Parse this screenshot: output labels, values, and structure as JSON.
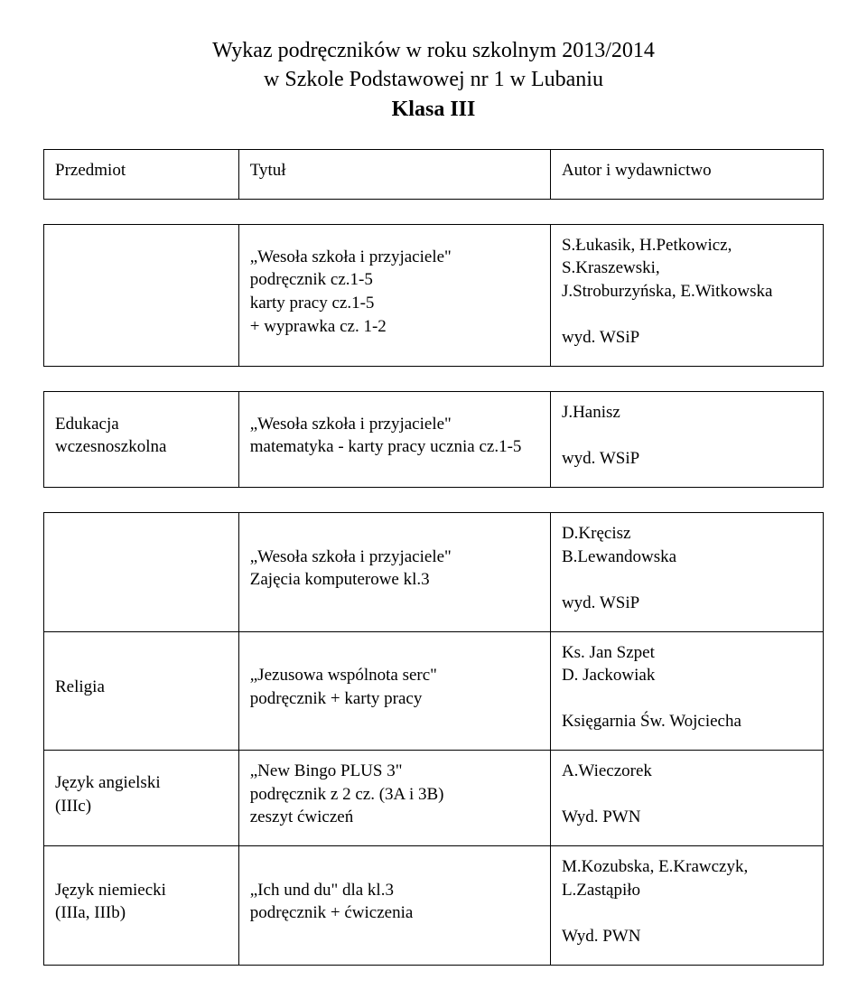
{
  "header": {
    "line1": "Wykaz podręczników w roku szkolnym 2013/2014",
    "line2": "w Szkole Podstawowej  nr 1 w Lubaniu",
    "class_label": "Klasa III"
  },
  "table_header": {
    "subject": "Przedmiot",
    "title": "Tytuł",
    "author": "Autor i wydawnictwo"
  },
  "rows": [
    {
      "subject": "",
      "title_lines": [
        "„Wesoła szkoła i przyjaciele\"",
        "podręcznik cz.1-5",
        "karty pracy cz.1-5",
        "+ wyprawka cz. 1-2"
      ],
      "author_lines": [
        "S.Łukasik, H.Petkowicz,",
        "S.Kraszewski,",
        "J.Stroburzyńska, E.Witkowska",
        "",
        "wyd. WSiP"
      ]
    },
    {
      "subject_lines": [
        "Edukacja",
        "wczesnoszkolna"
      ],
      "title_lines": [
        "„Wesoła szkoła i przyjaciele\"",
        "matematyka - karty pracy ucznia cz.1-5"
      ],
      "author_lines": [
        "J.Hanisz",
        "",
        "wyd. WSiP"
      ]
    },
    {
      "subject": "",
      "title_lines": [
        "„Wesoła szkoła i przyjaciele\"",
        "Zajęcia komputerowe kl.3"
      ],
      "author_lines": [
        "D.Kręcisz",
        "B.Lewandowska",
        "",
        "wyd. WSiP"
      ]
    },
    {
      "subject": "Religia",
      "title_lines": [
        "„Jezusowa wspólnota serc\"",
        "podręcznik + karty pracy"
      ],
      "author_lines": [
        "Ks. Jan Szpet",
        "D. Jackowiak",
        "",
        "Księgarnia Św. Wojciecha"
      ]
    },
    {
      "subject_lines": [
        "Język angielski",
        "(IIIc)"
      ],
      "title_lines": [
        "„New Bingo PLUS 3\"",
        "podręcznik  z 2 cz. (3A i 3B)",
        "zeszyt ćwiczeń"
      ],
      "author_lines": [
        "A.Wieczorek",
        "",
        "Wyd. PWN"
      ]
    },
    {
      "subject_lines": [
        "Język niemiecki",
        "(IIIa, IIIb)"
      ],
      "title_lines": [
        "„Ich und du\" dla kl.3",
        "podręcznik + ćwiczenia"
      ],
      "author_lines": [
        "M.Kozubska, E.Krawczyk,",
        "L.Zastąpiło",
        "",
        "Wyd. PWN"
      ]
    }
  ]
}
